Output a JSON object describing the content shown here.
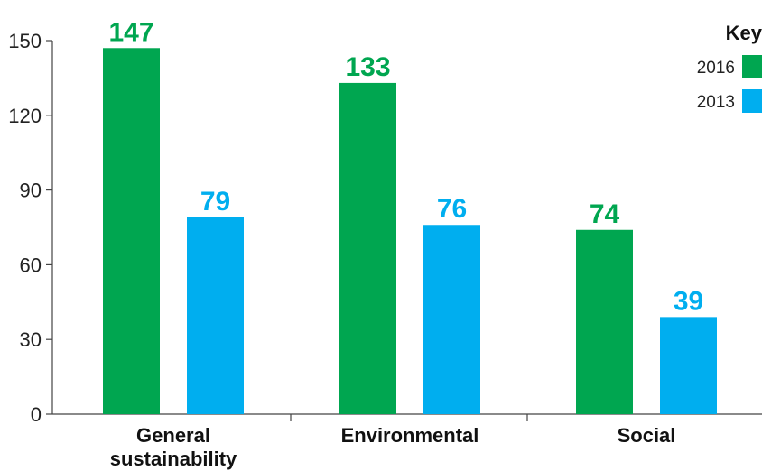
{
  "chart_data": {
    "type": "bar",
    "categories": [
      [
        "General",
        "sustainability"
      ],
      [
        "Environmental"
      ],
      [
        "Social"
      ]
    ],
    "series": [
      {
        "name": "2016",
        "values": [
          147,
          133,
          74
        ],
        "color": "#00a650"
      },
      {
        "name": "2013",
        "values": [
          79,
          76,
          39
        ],
        "color": "#00aeef"
      }
    ],
    "ylim": [
      0,
      150
    ],
    "yticks": [
      0,
      30,
      60,
      90,
      120,
      150
    ],
    "grid": false,
    "legend": {
      "title": "Key",
      "position": "top-right"
    }
  }
}
